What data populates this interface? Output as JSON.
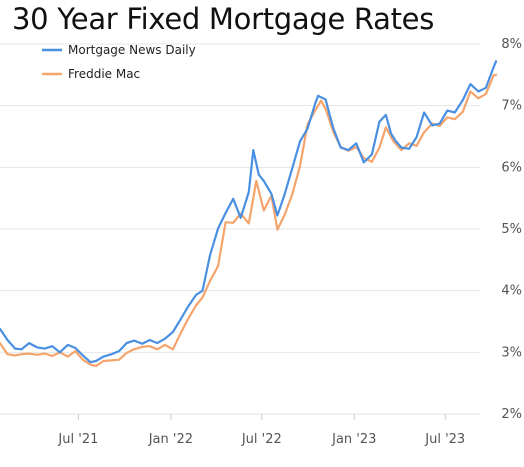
{
  "chart_data": {
    "type": "line",
    "title": "30 Year Fixed Mortgage Rates",
    "xlabel": "",
    "ylabel": "",
    "ylim": [
      2,
      8
    ],
    "yticks": [
      "2%",
      "3%",
      "4%",
      "5%",
      "6%",
      "7%",
      "8%"
    ],
    "ytick_values": [
      2,
      3,
      4,
      5,
      6,
      7,
      8
    ],
    "xticks": [
      "Jul '21",
      "Jan '22",
      "Jul '22",
      "Jan '23",
      "Jul '23"
    ],
    "xtick_values": [
      "2021-07-01",
      "2022-01-01",
      "2022-07-01",
      "2023-01-01",
      "2023-07-01"
    ],
    "xlim": [
      "2021-01-26",
      "2023-10-10"
    ],
    "grid": true,
    "legend": "top-left",
    "colors": {
      "Mortgage News Daily": "#4a90e2",
      "Freddie Mac": "#f5a46b"
    },
    "series": [
      {
        "name": "Mortgage News Daily",
        "x": [
          "2021-01-26",
          "2021-02-10",
          "2021-02-25",
          "2021-03-10",
          "2021-03-25",
          "2021-04-10",
          "2021-04-25",
          "2021-05-10",
          "2021-05-25",
          "2021-06-10",
          "2021-06-25",
          "2021-07-10",
          "2021-07-25",
          "2021-08-05",
          "2021-08-20",
          "2021-09-05",
          "2021-09-20",
          "2021-10-05",
          "2021-10-20",
          "2021-11-05",
          "2021-11-20",
          "2021-12-05",
          "2021-12-20",
          "2022-01-05",
          "2022-01-20",
          "2022-02-05",
          "2022-02-20",
          "2022-03-05",
          "2022-03-20",
          "2022-04-05",
          "2022-04-20",
          "2022-05-05",
          "2022-05-20",
          "2022-06-05",
          "2022-06-14",
          "2022-06-25",
          "2022-07-05",
          "2022-07-20",
          "2022-08-01",
          "2022-08-15",
          "2022-08-30",
          "2022-09-15",
          "2022-09-30",
          "2022-10-15",
          "2022-10-21",
          "2022-11-05",
          "2022-11-20",
          "2022-12-05",
          "2022-12-20",
          "2023-01-05",
          "2023-01-20",
          "2023-02-05",
          "2023-02-20",
          "2023-03-05",
          "2023-03-15",
          "2023-03-25",
          "2023-04-05",
          "2023-04-20",
          "2023-05-05",
          "2023-05-20",
          "2023-06-05",
          "2023-06-20",
          "2023-07-05",
          "2023-07-20",
          "2023-08-05",
          "2023-08-20",
          "2023-09-05",
          "2023-09-20",
          "2023-10-05",
          "2023-10-10"
        ],
        "y": [
          3.38,
          3.2,
          3.06,
          3.05,
          3.15,
          3.08,
          3.06,
          3.1,
          3.0,
          3.12,
          3.07,
          2.95,
          2.84,
          2.86,
          2.93,
          2.97,
          3.02,
          3.15,
          3.19,
          3.14,
          3.2,
          3.15,
          3.22,
          3.33,
          3.53,
          3.75,
          3.93,
          4.0,
          4.58,
          5.01,
          5.26,
          5.49,
          5.18,
          5.6,
          6.28,
          5.88,
          5.78,
          5.57,
          5.22,
          5.55,
          5.97,
          6.42,
          6.63,
          7.03,
          7.16,
          7.1,
          6.64,
          6.32,
          6.28,
          6.39,
          6.08,
          6.21,
          6.74,
          6.85,
          6.55,
          6.42,
          6.32,
          6.3,
          6.49,
          6.89,
          6.68,
          6.71,
          6.92,
          6.89,
          7.09,
          7.35,
          7.23,
          7.29,
          7.62,
          7.72
        ]
      },
      {
        "name": "Freddie Mac",
        "x": [
          "2021-01-26",
          "2021-02-10",
          "2021-02-25",
          "2021-03-10",
          "2021-03-25",
          "2021-04-10",
          "2021-04-25",
          "2021-05-10",
          "2021-05-25",
          "2021-06-10",
          "2021-06-25",
          "2021-07-10",
          "2021-07-25",
          "2021-08-05",
          "2021-08-20",
          "2021-09-05",
          "2021-09-20",
          "2021-10-05",
          "2021-10-20",
          "2021-11-05",
          "2021-11-20",
          "2021-12-05",
          "2021-12-20",
          "2022-01-05",
          "2022-01-20",
          "2022-02-05",
          "2022-02-20",
          "2022-03-05",
          "2022-03-20",
          "2022-04-05",
          "2022-04-20",
          "2022-05-05",
          "2022-05-20",
          "2022-06-05",
          "2022-06-20",
          "2022-07-05",
          "2022-07-20",
          "2022-08-01",
          "2022-08-15",
          "2022-08-30",
          "2022-09-15",
          "2022-09-30",
          "2022-10-15",
          "2022-10-27",
          "2022-11-05",
          "2022-11-20",
          "2022-12-05",
          "2022-12-20",
          "2023-01-05",
          "2023-01-20",
          "2023-02-05",
          "2023-02-20",
          "2023-03-05",
          "2023-03-20",
          "2023-04-05",
          "2023-04-20",
          "2023-05-05",
          "2023-05-20",
          "2023-06-05",
          "2023-06-20",
          "2023-07-05",
          "2023-07-20",
          "2023-08-05",
          "2023-08-20",
          "2023-09-05",
          "2023-09-20",
          "2023-10-05",
          "2023-10-10"
        ],
        "y": [
          3.15,
          2.97,
          2.95,
          2.97,
          2.98,
          2.96,
          2.98,
          2.94,
          3.0,
          2.93,
          3.02,
          2.88,
          2.8,
          2.78,
          2.86,
          2.87,
          2.88,
          2.99,
          3.05,
          3.09,
          3.1,
          3.05,
          3.12,
          3.05,
          3.3,
          3.55,
          3.76,
          3.89,
          4.16,
          4.4,
          5.11,
          5.1,
          5.25,
          5.09,
          5.78,
          5.3,
          5.54,
          4.99,
          5.22,
          5.55,
          6.02,
          6.7,
          6.92,
          7.08,
          6.95,
          6.58,
          6.33,
          6.27,
          6.33,
          6.15,
          6.09,
          6.32,
          6.65,
          6.42,
          6.28,
          6.39,
          6.35,
          6.57,
          6.71,
          6.67,
          6.81,
          6.78,
          6.9,
          7.23,
          7.12,
          7.19,
          7.49,
          7.5
        ]
      }
    ]
  }
}
